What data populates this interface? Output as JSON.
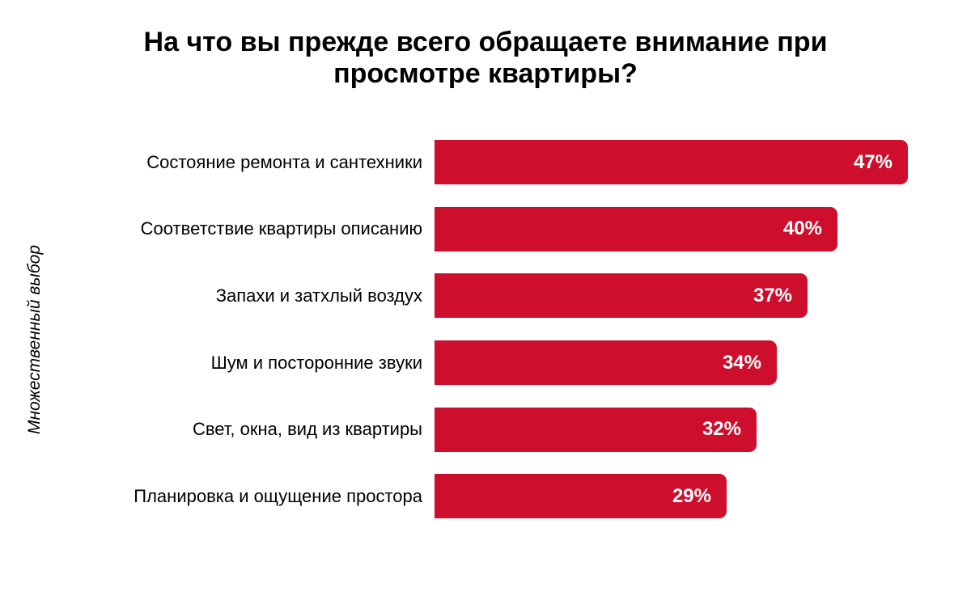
{
  "title": "На что вы прежде всего обращаете внимание при просмотре квартиры?",
  "colors": {
    "bar": "#CE0E2D",
    "title_text": "#000000",
    "bar_value_text": "#FFFFFF",
    "category_text": "#000000",
    "background": "#FFFFFF"
  },
  "chart_data": {
    "type": "bar",
    "orientation": "horizontal",
    "title": "На что вы прежде всего обращаете внимание при просмотре квартиры?",
    "ylabel": "Множественный выбор",
    "xlabel": "",
    "categories": [
      "Состояние ремонта и сантехники",
      "Соответствие квартиры описанию",
      "Запахи и затхлый воздух",
      "Шум и посторонние звуки",
      "Свет, окна, вид из квартиры",
      "Планировка и ощущение простора"
    ],
    "values": [
      47,
      40,
      37,
      34,
      32,
      29
    ],
    "value_labels": [
      "47%",
      "40%",
      "37%",
      "34%",
      "32%",
      "29%"
    ],
    "xlim": [
      0,
      50
    ],
    "grid": false,
    "legend": false,
    "value_labels_position": "inside-end",
    "sorted": "descending"
  }
}
